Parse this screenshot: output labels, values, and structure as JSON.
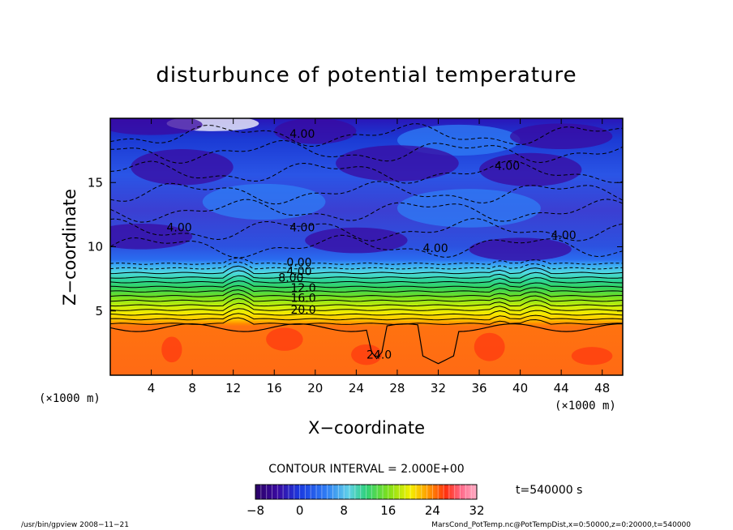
{
  "chart_data": {
    "type": "heatmap",
    "title": "disturbunce of potential temperature",
    "xlabel": "X−coordinate",
    "ylabel": "Z−coordinate",
    "x_unit": "(×1000 m)",
    "x_unit_right": "(×1000 m)",
    "xlim": [
      0,
      50
    ],
    "ylim": [
      0,
      20
    ],
    "x_ticks": [
      4,
      8,
      12,
      16,
      20,
      24,
      28,
      32,
      36,
      40,
      44,
      48
    ],
    "y_ticks": [
      5,
      10,
      15
    ],
    "colorbar": {
      "range": [
        -8,
        32
      ],
      "ticks": [
        "−8",
        "0",
        "8",
        "16",
        "24",
        "32"
      ]
    },
    "contour_interval_text": "CONTOUR INTERVAL = 2.000E+00",
    "time_text": "t=540000 s",
    "contour_labels": [
      {
        "text": "4.00",
        "x": 17.5,
        "z": 18.5
      },
      {
        "text": "4.00",
        "x": 37.5,
        "z": 16.0
      },
      {
        "text": "4.00",
        "x": 5.5,
        "z": 11.2
      },
      {
        "text": "4.00",
        "x": 17.5,
        "z": 11.2
      },
      {
        "text": "4.00",
        "x": 30.5,
        "z": 9.6
      },
      {
        "text": "4.00",
        "x": 43.0,
        "z": 10.6
      },
      {
        "text": "0.00",
        "x": 17.2,
        "z": 8.5
      },
      {
        "text": "4.00",
        "x": 17.2,
        "z": 7.8
      },
      {
        "text": "8.00",
        "x": 16.4,
        "z": 7.3
      },
      {
        "text": "12.0",
        "x": 17.6,
        "z": 6.5
      },
      {
        "text": "16.0",
        "x": 17.6,
        "z": 5.7
      },
      {
        "text": "20.0",
        "x": 17.6,
        "z": 4.8
      },
      {
        "text": "24.0",
        "x": 25.0,
        "z": 1.3
      }
    ],
    "field_summary": {
      "z_0_to_4km": "about 24 (orange), ~26 warm patches",
      "z_4_to_8km": "stratified 4 to 22 bands (green to yellow)",
      "z_8_to_20km": "-2 to -8 (blue to purple), white below -8 near top"
    }
  },
  "footer": {
    "left": "/usr/bin/gpview   2008−11−21",
    "right": "MarsCond_PotTemp.nc@PotTempDist,x=0:50000,z=0:20000,t=540000"
  }
}
